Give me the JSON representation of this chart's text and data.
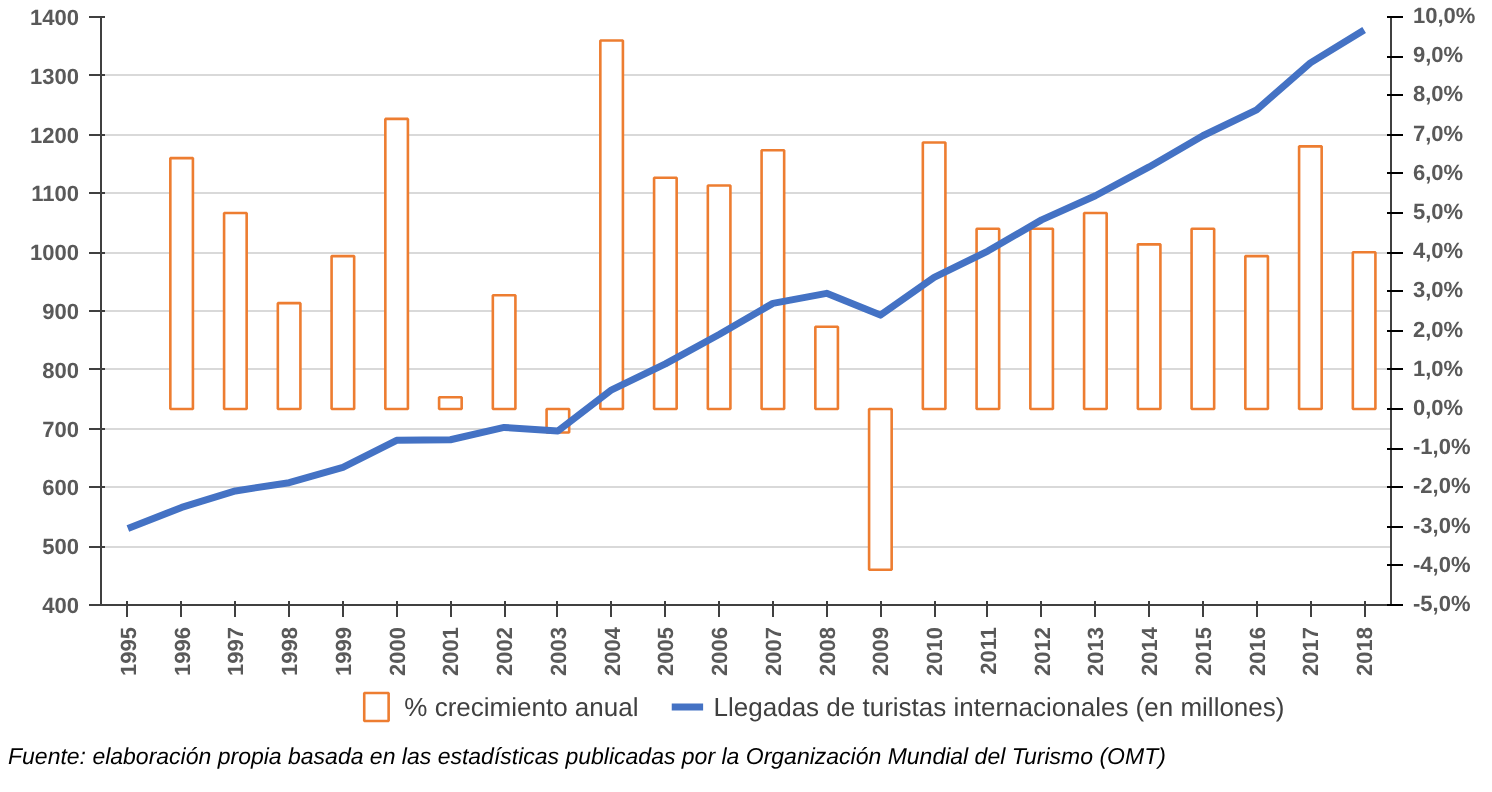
{
  "chart_data": {
    "type": "bar",
    "categories": [
      "1995",
      "1996",
      "1997",
      "1998",
      "1999",
      "2000",
      "2001",
      "2002",
      "2003",
      "2004",
      "2005",
      "2006",
      "2007",
      "2008",
      "2009",
      "2010",
      "2011",
      "2012",
      "2013",
      "2014",
      "2015",
      "2016",
      "2017",
      "2018"
    ],
    "series": [
      {
        "name": "% crecimiento anual",
        "axis": "y2",
        "color": "#ed7d31",
        "values": [
          null,
          6.4,
          5.0,
          2.7,
          3.9,
          7.4,
          0.3,
          2.9,
          -0.6,
          9.4,
          5.9,
          5.7,
          6.6,
          2.1,
          -4.1,
          6.8,
          4.6,
          4.6,
          5.0,
          4.2,
          4.6,
          3.9,
          6.7,
          4.0
        ]
      },
      {
        "name": "Llegadas de turistas internacionales (en millones)",
        "type": "line",
        "color": "#4472c4",
        "values": [
          530,
          566,
          594,
          608,
          634,
          680,
          681,
          702,
          696,
          766,
          810,
          860,
          913,
          930,
          893,
          957,
          1002,
          1055,
          1096,
          1145,
          1198,
          1242,
          1322,
          1378
        ]
      }
    ],
    "ylim": [
      400,
      1400
    ],
    "yticks": [
      400,
      500,
      600,
      700,
      800,
      900,
      1000,
      1100,
      1200,
      1300,
      1400
    ],
    "y2lim": [
      -5,
      10
    ],
    "y2ticks": [
      {
        "value": -5,
        "label": "-5,0%"
      },
      {
        "value": -4,
        "label": "-4,0%"
      },
      {
        "value": -3,
        "label": "-3,0%"
      },
      {
        "value": -2,
        "label": "-2,0%"
      },
      {
        "value": -1,
        "label": "-1,0%"
      },
      {
        "value": 0,
        "label": "0,0%"
      },
      {
        "value": 1,
        "label": "1,0%"
      },
      {
        "value": 2,
        "label": "2,0%"
      },
      {
        "value": 3,
        "label": "3,0%"
      },
      {
        "value": 4,
        "label": "4,0%"
      },
      {
        "value": 5,
        "label": "5,0%"
      },
      {
        "value": 6,
        "label": "6,0%"
      },
      {
        "value": 7,
        "label": "7,0%"
      },
      {
        "value": 8,
        "label": "8,0%"
      },
      {
        "value": 9,
        "label": "9,0%"
      },
      {
        "value": 10,
        "label": "10,0%"
      }
    ],
    "grid": "y",
    "legend": "bottom",
    "annotations": [
      "Fuente: elaboración propia basada en las estadísticas publicadas por la Organización Mundial del Turismo (OMT)"
    ]
  }
}
